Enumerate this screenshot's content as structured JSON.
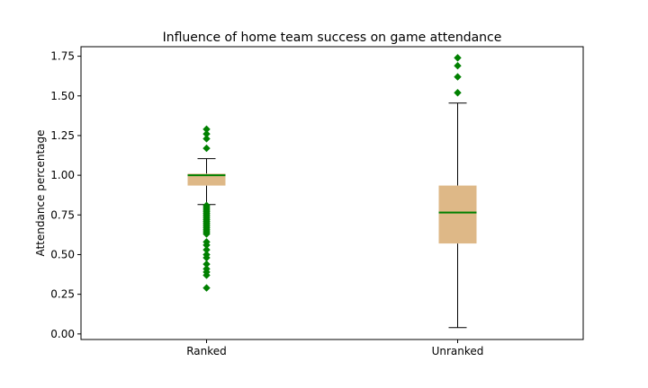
{
  "chart_data": {
    "type": "box",
    "title": "Influence of home team success on game attendance",
    "xlabel": "",
    "ylabel": "Attendance percentage",
    "ylim": [
      -0.035,
      1.81
    ],
    "yticks": [
      "0.00",
      "0.25",
      "0.50",
      "0.75",
      "1.00",
      "1.25",
      "1.50",
      "1.75"
    ],
    "categories": [
      "Ranked",
      "Unranked"
    ],
    "grid": false,
    "colors": {
      "box_fill": "#deb887",
      "median": "#008000",
      "flier": "#008000",
      "whisker": "#000000"
    },
    "boxes": [
      {
        "name": "Ranked",
        "whislo": 0.815,
        "q1": 0.935,
        "med": 1.0,
        "q3": 1.01,
        "whishi": 1.105,
        "fliers": [
          1.29,
          1.26,
          1.23,
          1.17,
          0.81,
          0.8,
          0.79,
          0.78,
          0.77,
          0.76,
          0.75,
          0.74,
          0.73,
          0.72,
          0.71,
          0.7,
          0.69,
          0.68,
          0.67,
          0.66,
          0.65,
          0.64,
          0.63,
          0.58,
          0.56,
          0.53,
          0.5,
          0.48,
          0.44,
          0.41,
          0.39,
          0.37,
          0.29
        ]
      },
      {
        "name": "Unranked",
        "whislo": 0.04,
        "q1": 0.57,
        "med": 0.765,
        "q3": 0.935,
        "whishi": 1.455,
        "fliers": [
          1.74,
          1.69,
          1.62,
          1.52
        ]
      }
    ]
  }
}
